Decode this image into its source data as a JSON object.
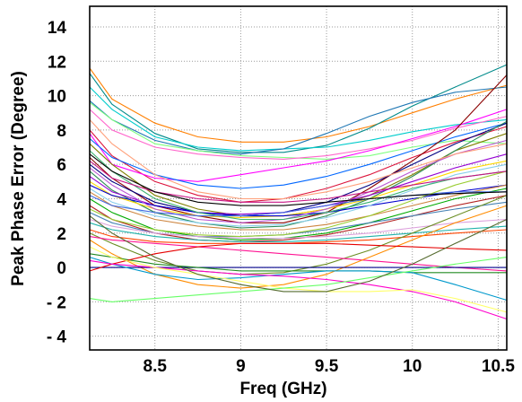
{
  "chart_data": {
    "type": "line",
    "xlabel": "Freq (GHz)",
    "ylabel": "Peak Phase Error (Degree)",
    "xlim": [
      8.12,
      10.55
    ],
    "ylim": [
      -4.8,
      15.2
    ],
    "grid": true,
    "legend": "none",
    "x_ticks": [
      8.5,
      9,
      9.5,
      10,
      10.5
    ],
    "x_tick_labels": [
      "8.5",
      "9",
      "9.5",
      "10",
      "10.5"
    ],
    "y_ticks": [
      -4,
      -2,
      0,
      2,
      4,
      6,
      8,
      10,
      12,
      14
    ],
    "y_tick_labels": [
      "- 4",
      "- 2",
      "0",
      "2",
      "4",
      "6",
      "8",
      "10",
      "12",
      "14"
    ],
    "x": [
      8.12,
      8.25,
      8.5,
      8.75,
      9.0,
      9.25,
      9.5,
      9.75,
      10.0,
      10.25,
      10.55
    ],
    "series": [
      {
        "color": "#ff7f00",
        "values": [
          11.6,
          9.8,
          8.4,
          7.6,
          7.3,
          7.3,
          7.6,
          8.2,
          9.0,
          9.8,
          10.6
        ]
      },
      {
        "color": "#008b8b",
        "values": [
          11.3,
          9.5,
          7.8,
          6.9,
          6.7,
          6.7,
          7.1,
          8.1,
          9.4,
          10.5,
          11.8
        ]
      },
      {
        "color": "#00cccc",
        "values": [
          10.5,
          9.2,
          7.6,
          7.0,
          6.8,
          6.9,
          7.0,
          7.4,
          7.9,
          8.3,
          8.6
        ]
      },
      {
        "color": "#1f77b4",
        "values": [
          9.7,
          8.6,
          7.4,
          6.8,
          6.6,
          6.9,
          7.8,
          8.8,
          9.6,
          10.2,
          10.5
        ]
      },
      {
        "color": "#7fff7f",
        "values": [
          9.6,
          8.6,
          7.2,
          6.8,
          6.5,
          6.4,
          6.3,
          6.5,
          7.0,
          7.4,
          7.2
        ]
      },
      {
        "color": "#ff66cc",
        "values": [
          9.2,
          8.0,
          7.0,
          6.6,
          6.4,
          6.3,
          6.5,
          6.9,
          7.4,
          8.1,
          8.8
        ]
      },
      {
        "color": "#dc143c",
        "values": [
          8.0,
          6.5,
          5.0,
          4.2,
          3.8,
          4.0,
          4.6,
          5.4,
          6.4,
          7.3,
          8.2
        ]
      },
      {
        "color": "#ff00ff",
        "values": [
          7.8,
          6.0,
          5.2,
          5.0,
          5.4,
          5.8,
          6.2,
          6.8,
          7.5,
          8.2,
          9.2
        ]
      },
      {
        "color": "#0066ff",
        "values": [
          7.5,
          6.4,
          5.4,
          4.8,
          4.6,
          4.8,
          5.3,
          6.0,
          6.8,
          7.6,
          8.4
        ]
      },
      {
        "color": "#808000",
        "values": [
          7.2,
          6.0,
          4.2,
          3.4,
          3.0,
          3.0,
          3.4,
          4.2,
          5.4,
          6.8,
          7.8
        ]
      },
      {
        "color": "#8b0000",
        "values": [
          6.4,
          5.2,
          3.6,
          3.0,
          2.6,
          2.6,
          3.2,
          4.6,
          6.2,
          8.0,
          11.2
        ]
      },
      {
        "color": "#000080",
        "values": [
          6.0,
          5.0,
          3.8,
          3.2,
          3.0,
          3.2,
          3.8,
          4.8,
          6.0,
          7.2,
          8.4
        ]
      },
      {
        "color": "#2e8b57",
        "values": [
          5.6,
          4.5,
          3.2,
          2.6,
          2.3,
          2.4,
          3.0,
          4.0,
          5.3,
          6.8,
          8.5
        ]
      },
      {
        "color": "#9400d3",
        "values": [
          5.3,
          4.4,
          3.6,
          3.2,
          3.1,
          3.2,
          3.6,
          4.2,
          5.0,
          5.8,
          6.6
        ]
      },
      {
        "color": "#ffd700",
        "values": [
          5.0,
          4.2,
          3.4,
          3.0,
          2.9,
          3.0,
          3.4,
          4.0,
          4.8,
          5.6,
          6.2
        ]
      },
      {
        "color": "#0000cd",
        "values": [
          4.8,
          4.2,
          3.6,
          3.2,
          3.0,
          3.0,
          3.2,
          3.6,
          4.0,
          4.4,
          4.8
        ]
      },
      {
        "color": "#87ceeb",
        "values": [
          4.6,
          3.8,
          3.0,
          2.6,
          2.4,
          2.5,
          2.9,
          3.6,
          4.5,
          5.4,
          6.0
        ]
      },
      {
        "color": "#cd853f",
        "values": [
          4.4,
          3.6,
          2.8,
          2.4,
          2.2,
          2.2,
          2.5,
          3.0,
          3.6,
          4.2,
          4.8
        ]
      },
      {
        "color": "#00aa00",
        "values": [
          4.0,
          3.2,
          2.2,
          1.8,
          1.6,
          1.7,
          2.0,
          2.6,
          3.3,
          4.0,
          4.6
        ]
      },
      {
        "color": "#b22222",
        "values": [
          3.6,
          2.8,
          2.0,
          1.6,
          1.5,
          1.6,
          1.9,
          2.4,
          3.0,
          3.6,
          4.2
        ]
      },
      {
        "color": "#4682b4",
        "values": [
          3.2,
          2.6,
          2.0,
          1.8,
          1.8,
          1.9,
          2.2,
          2.6,
          3.0,
          3.4,
          3.8
        ]
      },
      {
        "color": "#dda0dd",
        "values": [
          2.8,
          2.4,
          2.0,
          1.8,
          1.7,
          1.7,
          1.8,
          2.0,
          2.3,
          2.6,
          2.8
        ]
      },
      {
        "color": "#20b2aa",
        "values": [
          2.6,
          2.2,
          1.8,
          1.6,
          1.5,
          1.5,
          1.6,
          1.8,
          2.0,
          2.2,
          2.4
        ]
      },
      {
        "color": "#ff4500",
        "values": [
          2.2,
          1.8,
          1.5,
          1.4,
          1.4,
          1.4,
          1.5,
          1.6,
          1.8,
          2.0,
          2.2
        ]
      },
      {
        "color": "#6b8e23",
        "values": [
          2.0,
          1.4,
          0.4,
          -0.2,
          -0.4,
          -0.3,
          0.2,
          1.0,
          2.0,
          3.0,
          4.2
        ]
      },
      {
        "color": "#ff1493",
        "values": [
          1.8,
          1.6,
          1.4,
          1.2,
          1.0,
          0.8,
          0.6,
          0.4,
          0.2,
          0.0,
          -0.2
        ]
      },
      {
        "color": "#ff8c00",
        "values": [
          1.6,
          0.8,
          -0.4,
          -1.0,
          -1.2,
          -1.0,
          -0.4,
          0.6,
          1.6,
          2.6,
          3.6
        ]
      },
      {
        "color": "#00008b",
        "values": [
          0.0,
          0.0,
          0.0,
          0.0,
          0.0,
          0.0,
          0.0,
          0.0,
          0.0,
          0.0,
          0.0
        ]
      },
      {
        "color": "#228b22",
        "values": [
          0.8,
          0.6,
          0.2,
          0.0,
          -0.2,
          -0.2,
          -0.2,
          -0.2,
          -0.3,
          -0.3,
          -0.3
        ]
      },
      {
        "color": "#e60000",
        "values": [
          -0.2,
          0.2,
          0.8,
          1.2,
          1.4,
          1.4,
          1.4,
          1.3,
          1.2,
          1.1,
          1.0
        ]
      },
      {
        "color": "#0099cc",
        "values": [
          0.6,
          0.2,
          -0.4,
          -0.7,
          -0.6,
          -0.4,
          -0.2,
          -0.2,
          -0.3,
          -1.0,
          -1.9
        ]
      },
      {
        "color": "#ff00cc",
        "values": [
          0.4,
          0.2,
          0.0,
          -0.2,
          -0.4,
          -0.5,
          -0.7,
          -1.0,
          -1.4,
          -2.0,
          -3.0
        ]
      },
      {
        "color": "#ffff66",
        "values": [
          1.2,
          0.6,
          0.0,
          -0.4,
          -0.8,
          -1.2,
          -1.4,
          -1.4,
          -1.3,
          -1.8,
          -2.6
        ]
      },
      {
        "color": "#66ff66",
        "values": [
          -1.8,
          -2.0,
          -1.8,
          -1.6,
          -1.4,
          -1.2,
          -1.0,
          -0.6,
          -0.2,
          0.2,
          0.6
        ]
      },
      {
        "color": "#556b2f",
        "values": [
          3.0,
          2.0,
          0.6,
          -0.4,
          -1.0,
          -1.4,
          -1.4,
          -0.8,
          0.2,
          1.4,
          2.8
        ]
      },
      {
        "color": "#ba55d3",
        "values": [
          5.8,
          4.8,
          3.4,
          2.8,
          2.6,
          2.8,
          3.4,
          4.4,
          5.6,
          6.6,
          7.4
        ]
      },
      {
        "color": "#3cb371",
        "values": [
          6.8,
          5.6,
          4.0,
          3.2,
          2.8,
          2.8,
          3.2,
          3.8,
          4.6,
          5.2,
          5.6
        ]
      },
      {
        "color": "#ffa07a",
        "values": [
          8.6,
          7.2,
          5.4,
          4.4,
          4.0,
          4.0,
          4.4,
          5.0,
          5.8,
          6.6,
          7.2
        ]
      },
      {
        "color": "#4169e1",
        "values": [
          4.2,
          3.6,
          3.2,
          3.0,
          3.0,
          3.2,
          3.6,
          4.0,
          4.2,
          4.4,
          4.4
        ]
      },
      {
        "color": "#9acd32",
        "values": [
          3.4,
          2.8,
          2.2,
          1.9,
          1.8,
          1.9,
          2.3,
          3.0,
          3.9,
          4.8,
          5.6
        ]
      },
      {
        "color": "#c71585",
        "values": [
          6.2,
          5.2,
          4.4,
          4.0,
          3.8,
          3.8,
          4.0,
          4.4,
          4.8,
          5.2,
          5.6
        ]
      },
      {
        "color": "#000000",
        "values": [
          6.6,
          5.6,
          4.4,
          3.8,
          3.6,
          3.6,
          3.8,
          4.0,
          4.2,
          4.3,
          4.4
        ]
      }
    ]
  }
}
